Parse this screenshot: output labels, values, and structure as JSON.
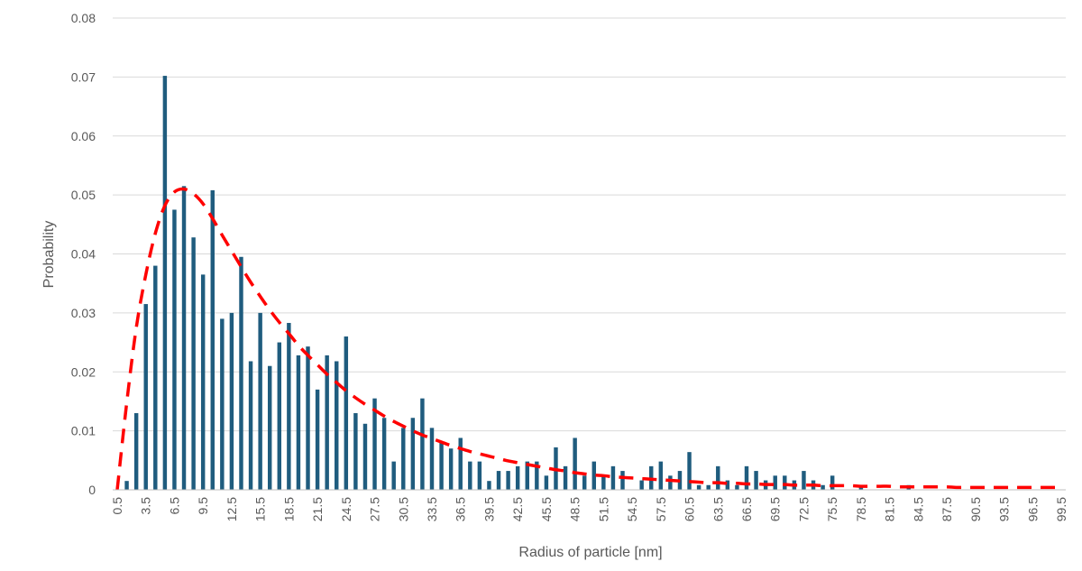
{
  "chart_data": {
    "type": "bar",
    "title": "",
    "xlabel": "Radius of particle [nm]",
    "ylabel": "Probability",
    "ylim": [
      0,
      0.08
    ],
    "yticks": [
      "0",
      "0.01",
      "0.02",
      "0.03",
      "0.04",
      "0.05",
      "0.06",
      "0.07",
      "0.08"
    ],
    "grid": true,
    "bar_color": "#1f5c7e",
    "fit_color": "#ff0000",
    "x": [
      0.5,
      1.5,
      2.5,
      3.5,
      4.5,
      5.5,
      6.5,
      7.5,
      8.5,
      9.5,
      10.5,
      11.5,
      12.5,
      13.5,
      14.5,
      15.5,
      16.5,
      17.5,
      18.5,
      19.5,
      20.5,
      21.5,
      22.5,
      23.5,
      24.5,
      25.5,
      26.5,
      27.5,
      28.5,
      29.5,
      30.5,
      31.5,
      32.5,
      33.5,
      34.5,
      35.5,
      36.5,
      37.5,
      38.5,
      39.5,
      40.5,
      41.5,
      42.5,
      43.5,
      44.5,
      45.5,
      46.5,
      47.5,
      48.5,
      49.5,
      50.5,
      51.5,
      52.5,
      53.5,
      54.5,
      55.5,
      56.5,
      57.5,
      58.5,
      59.5,
      60.5,
      61.5,
      62.5,
      63.5,
      64.5,
      65.5,
      66.5,
      67.5,
      68.5,
      69.5,
      70.5,
      71.5,
      72.5,
      73.5,
      74.5,
      75.5,
      76.5,
      77.5,
      78.5,
      79.5,
      80.5,
      81.5,
      82.5,
      83.5,
      84.5,
      85.5,
      86.5,
      87.5,
      88.5,
      89.5,
      90.5,
      91.5,
      92.5,
      93.5,
      94.5,
      95.5,
      96.5,
      97.5,
      98.5,
      99.5
    ],
    "xtick_labels": [
      "0.5",
      "3.5",
      "6.5",
      "9.5",
      "12.5",
      "15.5",
      "18.5",
      "21.5",
      "24.5",
      "27.5",
      "30.5",
      "33.5",
      "36.5",
      "39.5",
      "42.5",
      "45.5",
      "48.5",
      "51.5",
      "54.5",
      "57.5",
      "60.5",
      "63.5",
      "66.5",
      "69.5",
      "72.5",
      "75.5",
      "78.5",
      "81.5",
      "84.5",
      "87.5",
      "90.5",
      "93.5",
      "96.5",
      "99.5"
    ],
    "series": [
      {
        "type": "bar",
        "values": [
          0,
          0.0015,
          0.013,
          0.0315,
          0.038,
          0.0702,
          0.0475,
          0.0515,
          0.0428,
          0.0365,
          0.0508,
          0.029,
          0.03,
          0.0395,
          0.0218,
          0.03,
          0.021,
          0.025,
          0.0283,
          0.0228,
          0.0243,
          0.017,
          0.0228,
          0.0218,
          0.026,
          0.013,
          0.0112,
          0.0155,
          0.0122,
          0.0048,
          0.0105,
          0.0122,
          0.0155,
          0.0105,
          0.008,
          0.007,
          0.0088,
          0.0048,
          0.0048,
          0.0015,
          0.0032,
          0.0032,
          0.004,
          0.0048,
          0.0048,
          0.0024,
          0.0072,
          0.004,
          0.0088,
          0.0024,
          0.0048,
          0.0024,
          0.004,
          0.0032,
          0,
          0.0016,
          0.004,
          0.0048,
          0.0024,
          0.0032,
          0.0064,
          0.0008,
          0.0008,
          0.004,
          0.0016,
          0.0008,
          0.004,
          0.0032,
          0.0016,
          0.0024,
          0.0024,
          0.0016,
          0.0032,
          0.0016,
          0.0008,
          0.0024,
          0,
          0,
          0.0008,
          0,
          0,
          0,
          0,
          0.0008,
          0,
          0,
          0,
          0,
          0,
          0,
          0,
          0,
          0,
          0,
          0,
          0,
          0,
          0,
          0,
          0
        ]
      },
      {
        "type": "line",
        "style": "dashed",
        "values": [
          0,
          0.0148,
          0.0275,
          0.0365,
          0.0435,
          0.0482,
          0.0505,
          0.051,
          0.0502,
          0.0485,
          0.046,
          0.0432,
          0.0405,
          0.0378,
          0.0352,
          0.0328,
          0.0305,
          0.0284,
          0.0265,
          0.0245,
          0.0228,
          0.0212,
          0.0196,
          0.0182,
          0.0168,
          0.0156,
          0.0145,
          0.0135,
          0.0125,
          0.0116,
          0.0108,
          0.01,
          0.0093,
          0.0087,
          0.0081,
          0.0075,
          0.007,
          0.0065,
          0.0061,
          0.0057,
          0.0053,
          0.0049,
          0.0046,
          0.0043,
          0.004,
          0.0037,
          0.0034,
          0.0032,
          0.0029,
          0.0027,
          0.0025,
          0.0024,
          0.0022,
          0.0021,
          0.002,
          0.0019,
          0.0018,
          0.0017,
          0.0016,
          0.0015,
          0.0014,
          0.0013,
          0.0012,
          0.0012,
          0.0011,
          0.0011,
          0.001,
          0.001,
          0.0009,
          0.0009,
          0.0009,
          0.0008,
          0.0008,
          0.0008,
          0.0007,
          0.0007,
          0.0007,
          0.0007,
          0.0006,
          0.0006,
          0.0006,
          0.0006,
          0.0005,
          0.0005,
          0.0005,
          0.0005,
          0.0005,
          0.0005,
          0.0004,
          0.0004,
          0.0004,
          0.0004,
          0.0004,
          0.0004,
          0.0004,
          0.0004,
          0.0004,
          0.0004,
          0.0004,
          0.0004
        ]
      }
    ]
  }
}
